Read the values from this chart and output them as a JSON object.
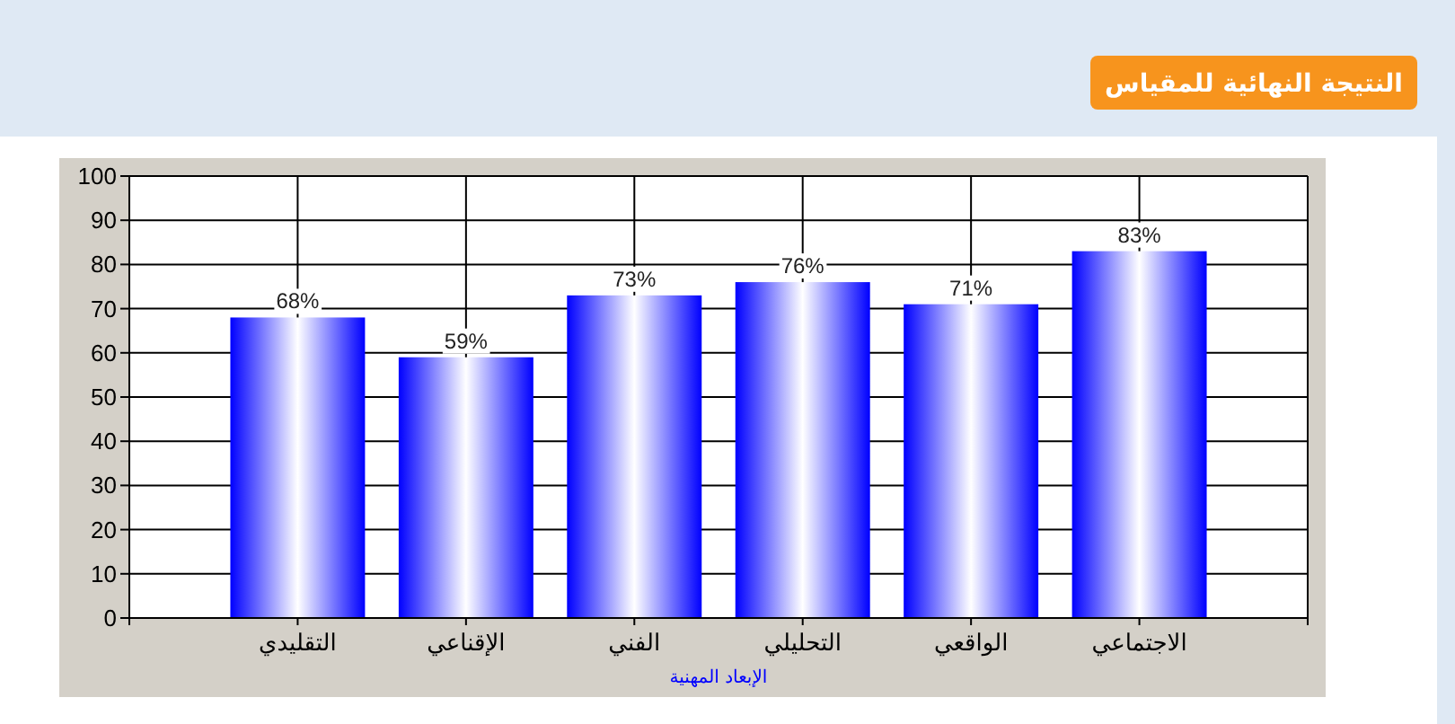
{
  "chart_data": {
    "type": "bar",
    "title": "النتيجة النهائية للمقياس",
    "xlabel": "الإبعاد المهنية",
    "categories": [
      "التقليدي",
      "الإقناعي",
      "الفني",
      "التحليلي",
      "الواقعي",
      "الاجتماعي"
    ],
    "values": [
      68,
      59,
      73,
      76,
      71,
      83
    ],
    "value_labels": [
      "68%",
      "59%",
      "73%",
      "76%",
      "71%",
      "83%"
    ],
    "color": "#0000ff",
    "ylim": [
      0,
      100
    ],
    "yticks": [
      0,
      10,
      20,
      30,
      40,
      50,
      60,
      70,
      80,
      90,
      100
    ],
    "grid": true
  }
}
